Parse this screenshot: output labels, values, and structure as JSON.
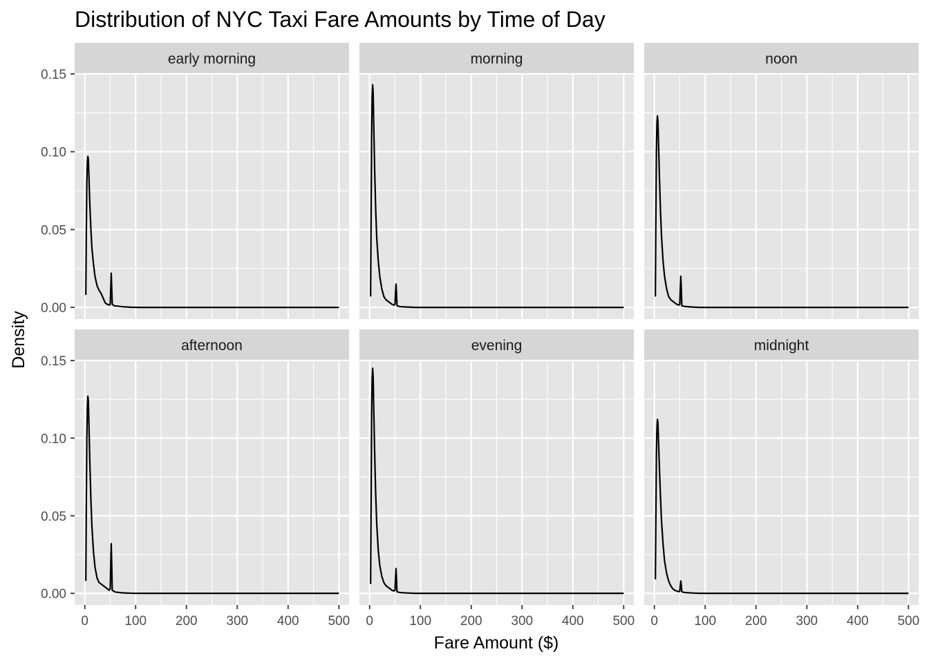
{
  "chart_data": {
    "type": "line",
    "title": "Distribution of NYC Taxi Fare Amounts by Time of Day",
    "xlabel": "Fare Amount ($)",
    "ylabel": "Density",
    "xlim": [
      -20,
      520
    ],
    "ylim": [
      -0.0075,
      0.15
    ],
    "x_ticks": [
      0,
      100,
      200,
      300,
      400,
      500
    ],
    "y_ticks": [
      0.0,
      0.05,
      0.1,
      0.15
    ],
    "x_tick_labels": [
      "0",
      "100",
      "200",
      "300",
      "400",
      "500"
    ],
    "y_tick_labels": [
      "0.00",
      "0.05",
      "0.10",
      "0.15"
    ],
    "grid": true,
    "legend": "none",
    "colors": {
      "panel_background": "#e5e5e5",
      "strip_background": "#d6d6d6",
      "grid": "#ffffff",
      "line": "#000000",
      "tick_label": "#4d4d4d"
    },
    "facets": [
      {
        "label": "early morning",
        "points": [
          [
            2,
            0.008
          ],
          [
            3,
            0.05
          ],
          [
            4,
            0.08
          ],
          [
            5,
            0.093
          ],
          [
            6,
            0.097
          ],
          [
            7,
            0.095
          ],
          [
            8,
            0.085
          ],
          [
            10,
            0.065
          ],
          [
            12,
            0.05
          ],
          [
            14,
            0.038
          ],
          [
            17,
            0.028
          ],
          [
            20,
            0.02
          ],
          [
            24,
            0.014
          ],
          [
            28,
            0.011
          ],
          [
            32,
            0.009
          ],
          [
            36,
            0.006
          ],
          [
            40,
            0.003
          ],
          [
            44,
            0.002
          ],
          [
            48,
            0.0015
          ],
          [
            50,
            0.002
          ],
          [
            51,
            0.012
          ],
          [
            52,
            0.022
          ],
          [
            53,
            0.012
          ],
          [
            54,
            0.002
          ],
          [
            58,
            0.001
          ],
          [
            65,
            0.0008
          ],
          [
            75,
            0.0004
          ],
          [
            90,
            0.0001
          ],
          [
            110,
            0
          ],
          [
            500,
            0
          ]
        ]
      },
      {
        "label": "morning",
        "points": [
          [
            2,
            0.007
          ],
          [
            3,
            0.06
          ],
          [
            4,
            0.11
          ],
          [
            5,
            0.135
          ],
          [
            6,
            0.143
          ],
          [
            7,
            0.138
          ],
          [
            8,
            0.12
          ],
          [
            10,
            0.088
          ],
          [
            12,
            0.063
          ],
          [
            14,
            0.045
          ],
          [
            17,
            0.03
          ],
          [
            20,
            0.02
          ],
          [
            24,
            0.012
          ],
          [
            28,
            0.007
          ],
          [
            32,
            0.005
          ],
          [
            36,
            0.004
          ],
          [
            40,
            0.003
          ],
          [
            44,
            0.002
          ],
          [
            48,
            0.0015
          ],
          [
            50,
            0.002
          ],
          [
            51,
            0.009
          ],
          [
            52,
            0.015
          ],
          [
            53,
            0.009
          ],
          [
            54,
            0.001
          ],
          [
            60,
            0.0005
          ],
          [
            75,
            0.0002
          ],
          [
            90,
            0
          ],
          [
            500,
            0
          ]
        ]
      },
      {
        "label": "noon",
        "points": [
          [
            2,
            0.007
          ],
          [
            3,
            0.06
          ],
          [
            4,
            0.1
          ],
          [
            5,
            0.118
          ],
          [
            6,
            0.123
          ],
          [
            7,
            0.12
          ],
          [
            8,
            0.108
          ],
          [
            10,
            0.083
          ],
          [
            12,
            0.062
          ],
          [
            14,
            0.046
          ],
          [
            17,
            0.03
          ],
          [
            20,
            0.02
          ],
          [
            24,
            0.012
          ],
          [
            28,
            0.007
          ],
          [
            32,
            0.005
          ],
          [
            36,
            0.004
          ],
          [
            40,
            0.003
          ],
          [
            44,
            0.002
          ],
          [
            48,
            0.0015
          ],
          [
            50,
            0.002
          ],
          [
            51,
            0.012
          ],
          [
            52,
            0.02
          ],
          [
            53,
            0.012
          ],
          [
            54,
            0.001
          ],
          [
            60,
            0.0006
          ],
          [
            75,
            0.0002
          ],
          [
            90,
            0
          ],
          [
            500,
            0
          ]
        ]
      },
      {
        "label": "afternoon",
        "points": [
          [
            2,
            0.008
          ],
          [
            3,
            0.06
          ],
          [
            4,
            0.1
          ],
          [
            5,
            0.12
          ],
          [
            6,
            0.127
          ],
          [
            7,
            0.124
          ],
          [
            8,
            0.11
          ],
          [
            10,
            0.083
          ],
          [
            12,
            0.06
          ],
          [
            14,
            0.043
          ],
          [
            17,
            0.027
          ],
          [
            20,
            0.017
          ],
          [
            24,
            0.01
          ],
          [
            28,
            0.007
          ],
          [
            32,
            0.006
          ],
          [
            36,
            0.005
          ],
          [
            40,
            0.004
          ],
          [
            44,
            0.003
          ],
          [
            48,
            0.002
          ],
          [
            50,
            0.003
          ],
          [
            51,
            0.018
          ],
          [
            52,
            0.032
          ],
          [
            53,
            0.018
          ],
          [
            54,
            0.002
          ],
          [
            60,
            0.0008
          ],
          [
            75,
            0.0003
          ],
          [
            90,
            0.0001
          ],
          [
            110,
            0
          ],
          [
            500,
            0
          ]
        ]
      },
      {
        "label": "evening",
        "points": [
          [
            2,
            0.006
          ],
          [
            3,
            0.06
          ],
          [
            4,
            0.115
          ],
          [
            5,
            0.138
          ],
          [
            6,
            0.145
          ],
          [
            7,
            0.14
          ],
          [
            8,
            0.122
          ],
          [
            10,
            0.09
          ],
          [
            12,
            0.064
          ],
          [
            14,
            0.045
          ],
          [
            17,
            0.028
          ],
          [
            20,
            0.018
          ],
          [
            24,
            0.011
          ],
          [
            28,
            0.007
          ],
          [
            32,
            0.005
          ],
          [
            36,
            0.004
          ],
          [
            40,
            0.003
          ],
          [
            44,
            0.002
          ],
          [
            48,
            0.0015
          ],
          [
            50,
            0.002
          ],
          [
            51,
            0.009
          ],
          [
            52,
            0.016
          ],
          [
            53,
            0.009
          ],
          [
            54,
            0.001
          ],
          [
            60,
            0.0005
          ],
          [
            75,
            0.0002
          ],
          [
            90,
            0
          ],
          [
            500,
            0
          ]
        ]
      },
      {
        "label": "midnight",
        "points": [
          [
            2,
            0.009
          ],
          [
            3,
            0.05
          ],
          [
            4,
            0.09
          ],
          [
            5,
            0.106
          ],
          [
            6,
            0.112
          ],
          [
            7,
            0.11
          ],
          [
            8,
            0.1
          ],
          [
            10,
            0.08
          ],
          [
            12,
            0.062
          ],
          [
            14,
            0.047
          ],
          [
            17,
            0.032
          ],
          [
            20,
            0.021
          ],
          [
            24,
            0.013
          ],
          [
            28,
            0.008
          ],
          [
            32,
            0.005
          ],
          [
            36,
            0.003
          ],
          [
            40,
            0.002
          ],
          [
            44,
            0.0015
          ],
          [
            48,
            0.001
          ],
          [
            50,
            0.0015
          ],
          [
            51,
            0.005
          ],
          [
            52,
            0.008
          ],
          [
            53,
            0.005
          ],
          [
            54,
            0.001
          ],
          [
            60,
            0.0005
          ],
          [
            75,
            0.0002
          ],
          [
            90,
            0
          ],
          [
            500,
            0
          ]
        ]
      }
    ]
  }
}
